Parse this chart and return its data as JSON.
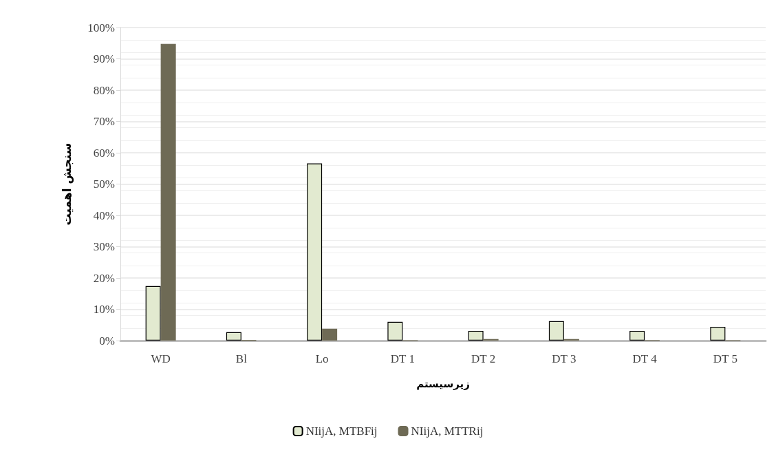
{
  "chart_data": {
    "type": "bar",
    "xlabel": "زیرسیستم",
    "ylabel": "سنجش اهمیت",
    "categories": [
      "WD",
      "Bl",
      "Lo",
      "DT 1",
      "DT 2",
      "DT 3",
      "DT 4",
      "DT 5"
    ],
    "series": [
      {
        "name": "NIijA, MTBFij",
        "color": "#e2ead0",
        "values": [
          17.4,
          2.7,
          56.6,
          6.0,
          3.1,
          6.2,
          3.1,
          4.4
        ]
      },
      {
        "name": "NIijA, MTTRij",
        "color": "#6e6a55",
        "values": [
          94.8,
          0.2,
          3.8,
          0,
          0.5,
          0.5,
          0.1,
          0
        ]
      }
    ],
    "ylim": [
      0,
      100
    ],
    "yticks": [
      {
        "value": 0,
        "label": "0%"
      },
      {
        "value": 10,
        "label": "10%"
      },
      {
        "value": 20,
        "label": "20%"
      },
      {
        "value": 30,
        "label": "30%"
      },
      {
        "value": 40,
        "label": "40%"
      },
      {
        "value": 50,
        "label": "50%"
      },
      {
        "value": 60,
        "label": "60%"
      },
      {
        "value": 70,
        "label": "70%"
      },
      {
        "value": 80,
        "label": "80%"
      },
      {
        "value": 90,
        "label": "90%"
      },
      {
        "value": 100,
        "label": "100%"
      }
    ],
    "grid": "y",
    "legend": "bottom"
  }
}
